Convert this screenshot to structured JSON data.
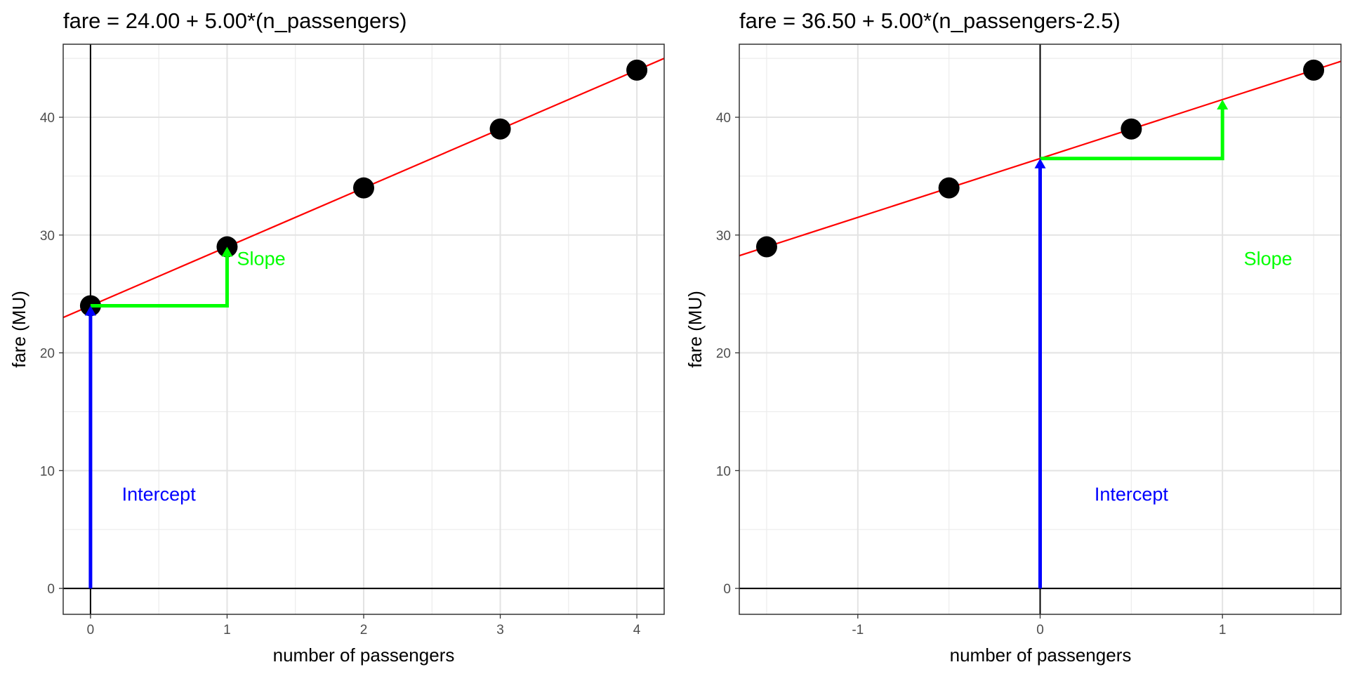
{
  "chart_data": [
    {
      "type": "scatter",
      "title": "fare = 24.00 + 5.00*(n_passengers)",
      "xlabel": "number of passengers",
      "ylabel": "fare (MU)",
      "xlim": [
        -0.2,
        4.2
      ],
      "ylim": [
        -2.2,
        46.2
      ],
      "x_ticks": [
        0,
        1,
        2,
        3,
        4
      ],
      "x_tick_labels": [
        "0",
        "1",
        "2",
        "3",
        "4"
      ],
      "y_ticks": [
        0,
        10,
        20,
        30,
        40
      ],
      "y_tick_labels": [
        "0",
        "10",
        "20",
        "30",
        "40"
      ],
      "grid": true,
      "points": {
        "x": [
          0,
          1,
          2,
          3,
          4
        ],
        "y": [
          24,
          29,
          34,
          39,
          44
        ]
      },
      "fit_line": {
        "intercept": 24.0,
        "slope": 5.0
      },
      "intercept_arrow": {
        "x": 0,
        "y_from": 0,
        "y_to": 24,
        "label": "Intercept",
        "label_x": 0.5,
        "label_y": 8,
        "color": "#0000ff"
      },
      "slope_path": {
        "x0": 0,
        "y0": 24,
        "x1": 1,
        "y1": 29,
        "label": "Slope",
        "label_x": 1.25,
        "label_y": 28,
        "color": "#00ff00"
      },
      "line_color": "#ff0000",
      "point_color": "#000000"
    },
    {
      "type": "scatter",
      "title": "fare = 36.50 + 5.00*(n_passengers-2.5)",
      "xlabel": "number of passengers",
      "ylabel": "fare (MU)",
      "xlim": [
        -1.65,
        1.65
      ],
      "ylim": [
        -2.2,
        46.2
      ],
      "x_ticks": [
        -1,
        0,
        1
      ],
      "x_tick_labels": [
        "-1",
        "0",
        "1"
      ],
      "y_ticks": [
        0,
        10,
        20,
        30,
        40
      ],
      "y_tick_labels": [
        "0",
        "10",
        "20",
        "30",
        "40"
      ],
      "grid": true,
      "points": {
        "x": [
          -1.5,
          -0.5,
          0.5,
          1.5
        ],
        "y": [
          29,
          34,
          39,
          44
        ]
      },
      "fit_line": {
        "intercept": 36.5,
        "slope": 5.0
      },
      "intercept_arrow": {
        "x": 0,
        "y_from": 0,
        "y_to": 36.5,
        "label": "Intercept",
        "label_x": 0.5,
        "label_y": 8,
        "color": "#0000ff"
      },
      "slope_path": {
        "x0": 0,
        "y0": 36.5,
        "x1": 1,
        "y1": 41.5,
        "label": "Slope",
        "label_x": 1.25,
        "label_y": 28,
        "color": "#00ff00"
      },
      "line_color": "#ff0000",
      "point_color": "#000000"
    }
  ]
}
